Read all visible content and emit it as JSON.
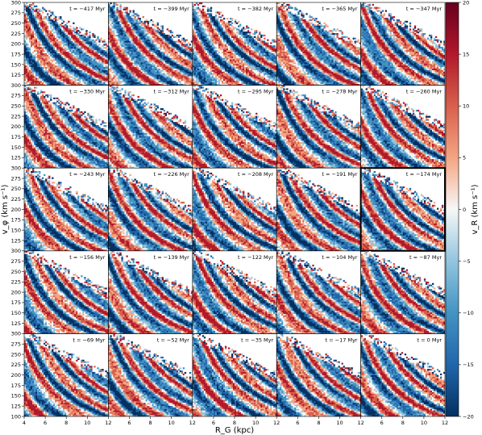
{
  "chart_data": {
    "type": "heatmap",
    "panels": [
      {
        "t": "t = −417 Myr"
      },
      {
        "t": "t = −399 Myr"
      },
      {
        "t": "t = −382 Myr"
      },
      {
        "t": "t = −365 Myr"
      },
      {
        "t": "t = −347 Myr"
      },
      {
        "t": "t = −330 Myr"
      },
      {
        "t": "t = −312 Myr"
      },
      {
        "t": "t = −295 Myr"
      },
      {
        "t": "t = −278 Myr"
      },
      {
        "t": "t = −260 Myr"
      },
      {
        "t": "t = −243 Myr"
      },
      {
        "t": "t = −226 Myr"
      },
      {
        "t": "t = −208 Myr"
      },
      {
        "t": "t = −191 Myr"
      },
      {
        "t": "t = −174 Myr",
        "highlight": true
      },
      {
        "t": "t = −156 Myr"
      },
      {
        "t": "t = −139 Myr"
      },
      {
        "t": "t = −122 Myr"
      },
      {
        "t": "t = −104 Myr"
      },
      {
        "t": "t = −87 Myr"
      },
      {
        "t": "t = −69 Myr"
      },
      {
        "t": "t = −52 Myr"
      },
      {
        "t": "t = −35 Myr"
      },
      {
        "t": "t = −17 Myr"
      },
      {
        "t": "t = 0 Myr"
      }
    ],
    "xlabel": "R_G (kpc)",
    "ylabel": "v_φ (km s⁻¹)",
    "colorbar_label": "v_R (km s⁻¹)",
    "xlim": [
      4,
      12
    ],
    "ylim": [
      100,
      300
    ],
    "xticks": [
      4,
      6,
      8,
      10,
      12
    ],
    "yticks": [
      100,
      125,
      150,
      175,
      200,
      225,
      250,
      275,
      300
    ],
    "clim": [
      -20,
      20
    ],
    "cticks": [
      -20,
      -15,
      -10,
      -5,
      0,
      5,
      10,
      15,
      20
    ],
    "colormap": [
      "#053061",
      "#2166ac",
      "#4393c3",
      "#92c5de",
      "#f7f7f7",
      "#f4a582",
      "#d6604d",
      "#b2182b",
      "#67001f"
    ]
  }
}
